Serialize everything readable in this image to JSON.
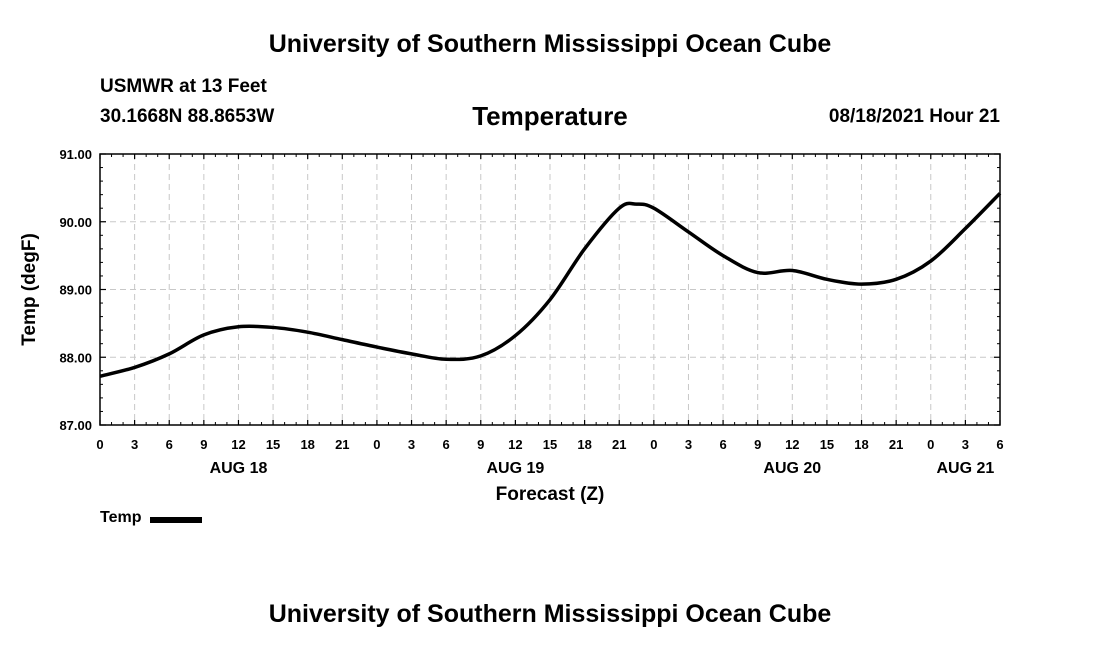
{
  "header": {
    "main_title": "University of Southern Mississippi Ocean Cube",
    "station": "USMWR at 13 Feet",
    "coords": "30.1668N  88.8653W",
    "chart_title": "Temperature",
    "datetime": "08/18/2021 Hour 21"
  },
  "footer": {
    "title": "University of Southern Mississippi Ocean Cube"
  },
  "legend": {
    "label": "Temp"
  },
  "chart_data": {
    "type": "line",
    "title": "Temperature",
    "xlabel": "Forecast (Z)",
    "ylabel": "Temp (degF)",
    "ylim": [
      87.0,
      91.0
    ],
    "y_ticks": [
      "87.00",
      "88.00",
      "89.00",
      "90.00",
      "91.00"
    ],
    "xlim_hours": [
      0,
      78
    ],
    "x_tick_hours": [
      0,
      3,
      6,
      9,
      12,
      15,
      18,
      21,
      24,
      27,
      30,
      33,
      36,
      39,
      42,
      45,
      48,
      51,
      54,
      57,
      60,
      63,
      66,
      69,
      72,
      75,
      78
    ],
    "x_tick_labels": [
      "0",
      "3",
      "6",
      "9",
      "12",
      "15",
      "18",
      "21",
      "0",
      "3",
      "6",
      "9",
      "12",
      "15",
      "18",
      "21",
      "0",
      "3",
      "6",
      "9",
      "12",
      "15",
      "18",
      "21",
      "0",
      "3",
      "6"
    ],
    "day_labels": [
      {
        "label": "AUG 18",
        "hour": 12
      },
      {
        "label": "AUG 19",
        "hour": 36
      },
      {
        "label": "AUG 20",
        "hour": 60
      },
      {
        "label": "AUG 21",
        "hour": 75
      }
    ],
    "grid": true,
    "series": [
      {
        "name": "Temp",
        "color": "#000000",
        "x": [
          0,
          3,
          6,
          9,
          12,
          15,
          18,
          21,
          24,
          27,
          30,
          33,
          36,
          39,
          42,
          45,
          46.5,
          48,
          51,
          54,
          57,
          60,
          63,
          66,
          69,
          72,
          75,
          78
        ],
        "y": [
          87.72,
          87.85,
          88.05,
          88.33,
          88.45,
          88.44,
          88.37,
          88.26,
          88.15,
          88.05,
          87.97,
          88.02,
          88.32,
          88.85,
          89.6,
          90.2,
          90.26,
          90.2,
          89.85,
          89.5,
          89.25,
          89.28,
          89.15,
          89.08,
          89.15,
          89.42,
          89.9,
          90.42
        ]
      }
    ]
  }
}
